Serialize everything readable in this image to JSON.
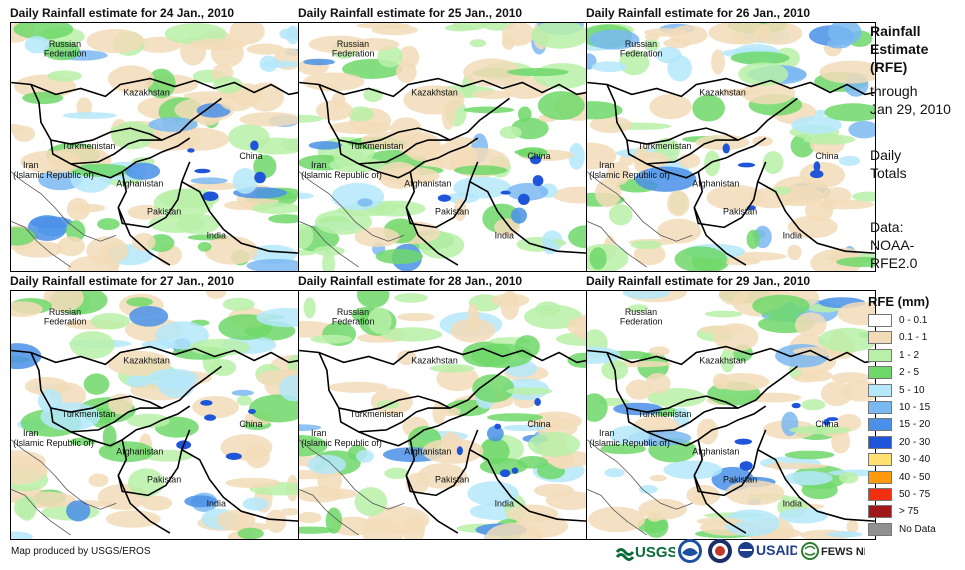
{
  "panels": [
    {
      "title": "Daily Rainfall estimate for 24 Jan., 2010"
    },
    {
      "title": "Daily Rainfall estimate for 25 Jan., 2010"
    },
    {
      "title": "Daily Rainfall estimate for 26 Jan., 2010"
    },
    {
      "title": "Daily Rainfall estimate for 27 Jan., 2010"
    },
    {
      "title": "Daily Rainfall estimate for 28 Jan., 2010"
    },
    {
      "title": "Daily Rainfall estimate for 29 Jan., 2010"
    }
  ],
  "country_labels": {
    "russia_1": "Russian",
    "russia_2": "Federation",
    "kazakhstan": "Kazakhstan",
    "turkmenistan": "Turkmenistan",
    "china": "China",
    "iran_1": "Iran",
    "iran_2": "(Islamic Republic of)",
    "afghanistan": "Afghanistan",
    "pakistan": "Pakistan",
    "india": "India"
  },
  "side_info": {
    "title_1": "Rainfall",
    "title_2": "Estimate",
    "title_3": "(RFE)",
    "through_1": "through",
    "through_2": "Jan 29, 2010",
    "totals_1": "Daily",
    "totals_2": "Totals",
    "data_1": "Data:",
    "data_2": "NOAA-",
    "data_3": "RFE2.0"
  },
  "legend": {
    "title": "RFE (mm)",
    "items": [
      {
        "label": "0 - 0.1",
        "color": "#ffffff"
      },
      {
        "label": "0.1 - 1",
        "color": "#f2dcb8"
      },
      {
        "label": "1 - 2",
        "color": "#b8f0a8"
      },
      {
        "label": "2 - 5",
        "color": "#6ed86a"
      },
      {
        "label": "5 - 10",
        "color": "#b4e8fa"
      },
      {
        "label": "10 - 15",
        "color": "#7ab8f2"
      },
      {
        "label": "15 - 20",
        "color": "#4a90e8"
      },
      {
        "label": "20 - 30",
        "color": "#1f55d8"
      },
      {
        "label": "30 - 40",
        "color": "#ffe070"
      },
      {
        "label": "40 - 50",
        "color": "#ff9a10"
      },
      {
        "label": "50 - 75",
        "color": "#f03010"
      },
      {
        "label": "> 75",
        "color": "#a01818"
      },
      {
        "label": "No Data",
        "color": "#909090"
      }
    ]
  },
  "footer": {
    "credit": "Map produced by USGS/EROS",
    "logos": [
      "USGS",
      "NOAA",
      "DHS",
      "USAID",
      "FEWS NET"
    ],
    "logo_icons": [
      "usgs-logo",
      "noaa-logo-icon",
      "dhs-seal-icon",
      "usaid-logo",
      "fews-net-globe-icon"
    ]
  }
}
